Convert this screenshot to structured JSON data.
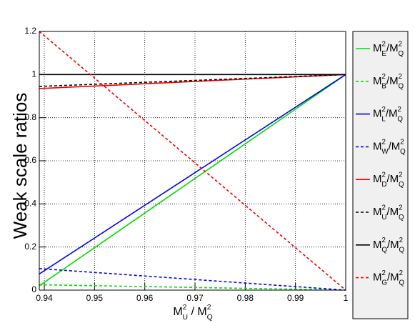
{
  "chart_data": {
    "type": "line",
    "ylabel": "Weak scale ratios",
    "xlabel": "M_U^2 / M_Q^2",
    "x": [
      0.939,
      1
    ],
    "xlim": [
      0.939,
      1
    ],
    "xticks": [
      0.94,
      0.95,
      0.96,
      0.97,
      0.98,
      0.99,
      1
    ],
    "ylim": [
      0,
      1.2
    ],
    "yticks": [
      0,
      0.2,
      0.4,
      0.6,
      0.8,
      1,
      1.2
    ],
    "grid": true,
    "legend": "right",
    "series": [
      {
        "name": "M_E^2/M_Q^2",
        "color": "#00dd00",
        "dash": "solid",
        "values": [
          0.02,
          1
        ]
      },
      {
        "name": "M_B^2/M_Q^2",
        "color": "#00dd00",
        "dash": "dashed",
        "values": [
          0.025,
          0
        ]
      },
      {
        "name": "M_L^2/M_Q^2",
        "color": "#0000ee",
        "dash": "solid",
        "values": [
          0.075,
          1
        ]
      },
      {
        "name": "M_W^2/M_Q^2",
        "color": "#0000ee",
        "dash": "dashed",
        "values": [
          0.1,
          0
        ]
      },
      {
        "name": "M_D^2/M_Q^2",
        "color": "#ee0000",
        "dash": "solid",
        "values": [
          0.935,
          1
        ]
      },
      {
        "name": "M_U^2/M_Q^2",
        "color": "#000000",
        "dash": "dashed",
        "values": [
          0.945,
          1
        ]
      },
      {
        "name": "M_Q^2/M_Q^2",
        "color": "#000000",
        "dash": "solid",
        "values": [
          1,
          1
        ]
      },
      {
        "name": "M_G^2/M_Q^2",
        "color": "#ee0000",
        "dash": "dashed",
        "values": [
          1.2,
          0
        ]
      }
    ]
  }
}
